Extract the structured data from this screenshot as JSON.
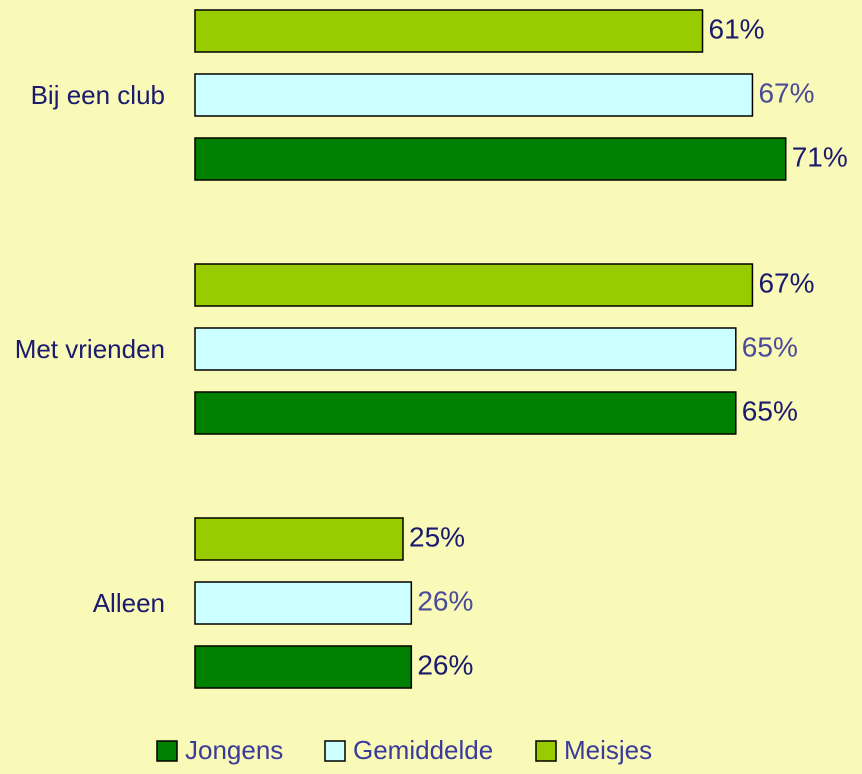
{
  "chart_data": {
    "type": "bar",
    "orientation": "horizontal",
    "categories": [
      "Bij een club",
      "Met vrienden",
      "Alleen"
    ],
    "series": [
      {
        "name": "Jongens",
        "color": "#008000",
        "label_color": "#1a1a6e",
        "values": [
          71,
          65,
          26
        ],
        "value_labels": [
          "71%",
          "65%",
          "26%"
        ]
      },
      {
        "name": "Gemiddelde",
        "color": "#ccffff",
        "label_color": "#4a4a9a",
        "values": [
          67,
          65,
          26
        ],
        "value_labels": [
          "67%",
          "65%",
          "26%"
        ]
      },
      {
        "name": "Meisjes",
        "color": "#99cc00",
        "label_color": "#1a1a6e",
        "values": [
          61,
          67,
          25
        ],
        "value_labels": [
          "61%",
          "67%",
          "25%"
        ]
      }
    ],
    "legend": "bottom"
  }
}
